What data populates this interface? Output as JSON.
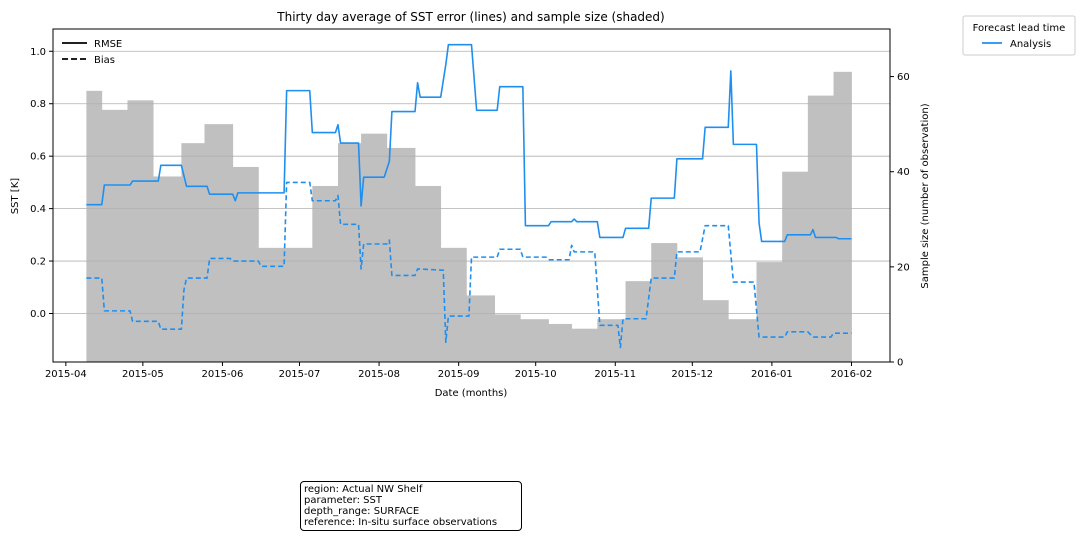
{
  "chart_data": {
    "type": "line",
    "title": "Thirty day average of SST error (lines) and sample size (shaded)",
    "xlabel": "Date (months)",
    "ylabel": "SST [K]",
    "ylabel_right": "Sample size (number of observation)",
    "x_ticks": [
      "2015-04",
      "2015-05",
      "2015-06",
      "2015-07",
      "2015-08",
      "2015-09",
      "2015-10",
      "2015-11",
      "2015-12",
      "2016-01",
      "2016-02"
    ],
    "y_ticks": [
      "0.0",
      "0.2",
      "0.4",
      "0.6",
      "0.8",
      "1.0"
    ],
    "y2_ticks": [
      "0",
      "20",
      "40",
      "60"
    ],
    "xlim": [
      "2015-03-27",
      "2016-02-16"
    ],
    "ylim": [
      -0.185,
      1.085
    ],
    "y2lim": [
      0,
      70
    ],
    "grid": "horizontal",
    "legend_style": {
      "title": "",
      "position": "upper-left",
      "entries": [
        {
          "label": "RMSE",
          "dash": "solid"
        },
        {
          "label": "Bias",
          "dash": "dashed"
        }
      ]
    },
    "legend_lead": {
      "title": "Forecast lead time",
      "position": "outside-right",
      "entries": [
        {
          "label": "Analysis",
          "color": "#1f8fef"
        }
      ]
    },
    "series": [
      {
        "name": "Analysis",
        "metric": "RMSE",
        "color": "#1f8fef",
        "dash": "solid",
        "points": [
          [
            "2015-04-09",
            0.415
          ],
          [
            "2015-04-15",
            0.415
          ],
          [
            "2015-04-16",
            0.49
          ],
          [
            "2015-04-26",
            0.49
          ],
          [
            "2015-04-27",
            0.505
          ],
          [
            "2015-05-07",
            0.505
          ],
          [
            "2015-05-08",
            0.565
          ],
          [
            "2015-05-16",
            0.565
          ],
          [
            "2015-05-18",
            0.485
          ],
          [
            "2015-05-26",
            0.485
          ],
          [
            "2015-05-27",
            0.455
          ],
          [
            "2015-06-05",
            0.455
          ],
          [
            "2015-06-06",
            0.43
          ],
          [
            "2015-06-07",
            0.46
          ],
          [
            "2015-06-24",
            0.46
          ],
          [
            "2015-06-25",
            0.46
          ],
          [
            "2015-06-26",
            0.85
          ],
          [
            "2015-07-05",
            0.85
          ],
          [
            "2015-07-06",
            0.69
          ],
          [
            "2015-07-15",
            0.69
          ],
          [
            "2015-07-16",
            0.72
          ],
          [
            "2015-07-17",
            0.65
          ],
          [
            "2015-07-24",
            0.65
          ],
          [
            "2015-07-25",
            0.41
          ],
          [
            "2015-07-26",
            0.52
          ],
          [
            "2015-08-03",
            0.52
          ],
          [
            "2015-08-05",
            0.58
          ],
          [
            "2015-08-06",
            0.77
          ],
          [
            "2015-08-15",
            0.77
          ],
          [
            "2015-08-16",
            0.88
          ],
          [
            "2015-08-17",
            0.825
          ],
          [
            "2015-08-25",
            0.825
          ],
          [
            "2015-08-27",
            0.95
          ],
          [
            "2015-08-28",
            1.025
          ],
          [
            "2015-09-06",
            1.025
          ],
          [
            "2015-09-08",
            0.775
          ],
          [
            "2015-09-16",
            0.775
          ],
          [
            "2015-09-17",
            0.865
          ],
          [
            "2015-09-26",
            0.865
          ],
          [
            "2015-09-27",
            0.335
          ],
          [
            "2015-10-06",
            0.335
          ],
          [
            "2015-10-07",
            0.35
          ],
          [
            "2015-10-15",
            0.35
          ],
          [
            "2015-10-16",
            0.36
          ],
          [
            "2015-10-17",
            0.35
          ],
          [
            "2015-10-25",
            0.35
          ],
          [
            "2015-10-26",
            0.29
          ],
          [
            "2015-11-04",
            0.29
          ],
          [
            "2015-11-05",
            0.325
          ],
          [
            "2015-11-14",
            0.325
          ],
          [
            "2015-11-15",
            0.44
          ],
          [
            "2015-11-24",
            0.44
          ],
          [
            "2015-11-25",
            0.59
          ],
          [
            "2015-12-05",
            0.59
          ],
          [
            "2015-12-06",
            0.71
          ],
          [
            "2015-12-15",
            0.71
          ],
          [
            "2015-12-16",
            0.925
          ],
          [
            "2015-12-17",
            0.645
          ],
          [
            "2015-12-26",
            0.645
          ],
          [
            "2015-12-27",
            0.345
          ],
          [
            "2015-12-28",
            0.275
          ],
          [
            "2016-01-06",
            0.275
          ],
          [
            "2016-01-07",
            0.3
          ],
          [
            "2016-01-16",
            0.3
          ],
          [
            "2016-01-17",
            0.32
          ],
          [
            "2016-01-18",
            0.29
          ],
          [
            "2016-01-26",
            0.29
          ],
          [
            "2016-01-27",
            0.285
          ],
          [
            "2016-02-01",
            0.285
          ]
        ]
      },
      {
        "name": "Analysis",
        "metric": "Bias",
        "color": "#1f8fef",
        "dash": "dashed",
        "points": [
          [
            "2015-04-09",
            0.135
          ],
          [
            "2015-04-15",
            0.135
          ],
          [
            "2015-04-16",
            0.01
          ],
          [
            "2015-04-26",
            0.01
          ],
          [
            "2015-04-27",
            -0.03
          ],
          [
            "2015-05-07",
            -0.03
          ],
          [
            "2015-05-08",
            -0.06
          ],
          [
            "2015-05-16",
            -0.06
          ],
          [
            "2015-05-17",
            0.09
          ],
          [
            "2015-05-18",
            0.135
          ],
          [
            "2015-05-26",
            0.135
          ],
          [
            "2015-05-27",
            0.21
          ],
          [
            "2015-06-04",
            0.21
          ],
          [
            "2015-06-05",
            0.2
          ],
          [
            "2015-06-15",
            0.2
          ],
          [
            "2015-06-16",
            0.18
          ],
          [
            "2015-06-25",
            0.18
          ],
          [
            "2015-06-26",
            0.5
          ],
          [
            "2015-07-05",
            0.5
          ],
          [
            "2015-07-06",
            0.43
          ],
          [
            "2015-07-15",
            0.43
          ],
          [
            "2015-07-16",
            0.45
          ],
          [
            "2015-07-17",
            0.34
          ],
          [
            "2015-07-24",
            0.34
          ],
          [
            "2015-07-25",
            0.17
          ],
          [
            "2015-07-26",
            0.265
          ],
          [
            "2015-08-04",
            0.265
          ],
          [
            "2015-08-05",
            0.28
          ],
          [
            "2015-08-06",
            0.145
          ],
          [
            "2015-08-15",
            0.145
          ],
          [
            "2015-08-16",
            0.17
          ],
          [
            "2015-08-26",
            0.165
          ],
          [
            "2015-08-27",
            -0.11
          ],
          [
            "2015-08-28",
            -0.01
          ],
          [
            "2015-09-05",
            -0.01
          ],
          [
            "2015-09-06",
            0.215
          ],
          [
            "2015-09-16",
            0.215
          ],
          [
            "2015-09-17",
            0.245
          ],
          [
            "2015-09-25",
            0.245
          ],
          [
            "2015-09-26",
            0.215
          ],
          [
            "2015-10-05",
            0.215
          ],
          [
            "2015-10-06",
            0.205
          ],
          [
            "2015-10-14",
            0.205
          ],
          [
            "2015-10-15",
            0.26
          ],
          [
            "2015-10-16",
            0.235
          ],
          [
            "2015-10-24",
            0.235
          ],
          [
            "2015-10-26",
            -0.045
          ],
          [
            "2015-11-02",
            -0.045
          ],
          [
            "2015-11-03",
            -0.13
          ],
          [
            "2015-11-04",
            -0.02
          ],
          [
            "2015-11-13",
            -0.02
          ],
          [
            "2015-11-15",
            0.135
          ],
          [
            "2015-11-24",
            0.135
          ],
          [
            "2015-11-25",
            0.235
          ],
          [
            "2015-12-04",
            0.235
          ],
          [
            "2015-12-06",
            0.335
          ],
          [
            "2015-12-15",
            0.335
          ],
          [
            "2015-12-17",
            0.12
          ],
          [
            "2015-12-25",
            0.12
          ],
          [
            "2015-12-27",
            -0.09
          ],
          [
            "2016-01-06",
            -0.09
          ],
          [
            "2016-01-07",
            -0.07
          ],
          [
            "2016-01-15",
            -0.07
          ],
          [
            "2016-01-17",
            -0.09
          ],
          [
            "2016-01-24",
            -0.09
          ],
          [
            "2016-01-25",
            -0.075
          ],
          [
            "2016-02-01",
            -0.075
          ]
        ]
      }
    ],
    "sample_size": {
      "color": "#c0c0c0",
      "bins": [
        [
          "2015-04-09",
          "2015-04-15",
          57
        ],
        [
          "2015-04-15",
          "2015-04-25",
          53
        ],
        [
          "2015-04-25",
          "2015-05-05",
          55
        ],
        [
          "2015-05-05",
          "2015-05-16",
          39
        ],
        [
          "2015-05-16",
          "2015-05-25",
          46
        ],
        [
          "2015-05-25",
          "2015-06-05",
          50
        ],
        [
          "2015-06-05",
          "2015-06-15",
          41
        ],
        [
          "2015-06-15",
          "2015-06-25",
          24
        ],
        [
          "2015-06-25",
          "2015-07-06",
          24
        ],
        [
          "2015-07-06",
          "2015-07-16",
          37
        ],
        [
          "2015-07-16",
          "2015-07-25",
          46
        ],
        [
          "2015-07-25",
          "2015-08-04",
          48
        ],
        [
          "2015-08-04",
          "2015-08-15",
          45
        ],
        [
          "2015-08-15",
          "2015-08-25",
          37
        ],
        [
          "2015-08-25",
          "2015-09-04",
          24
        ],
        [
          "2015-09-04",
          "2015-09-15",
          14
        ],
        [
          "2015-09-15",
          "2015-09-25",
          10
        ],
        [
          "2015-09-25",
          "2015-10-06",
          9
        ],
        [
          "2015-10-06",
          "2015-10-15",
          8
        ],
        [
          "2015-10-15",
          "2015-10-25",
          7
        ],
        [
          "2015-10-25",
          "2015-11-05",
          9
        ],
        [
          "2015-11-05",
          "2015-11-15",
          17
        ],
        [
          "2015-11-15",
          "2015-11-25",
          25
        ],
        [
          "2015-11-25",
          "2015-12-05",
          22
        ],
        [
          "2015-12-05",
          "2015-12-15",
          13
        ],
        [
          "2015-12-15",
          "2015-12-26",
          9
        ],
        [
          "2015-12-26",
          "2016-01-05",
          21
        ],
        [
          "2016-01-05",
          "2016-01-15",
          40
        ],
        [
          "2016-01-15",
          "2016-01-25",
          56
        ],
        [
          "2016-01-25",
          "2016-02-01",
          61
        ]
      ]
    }
  },
  "info_box": [
    "region: Actual NW Shelf",
    "parameter: SST",
    "depth_range: SURFACE",
    "reference: In-situ surface observations"
  ]
}
